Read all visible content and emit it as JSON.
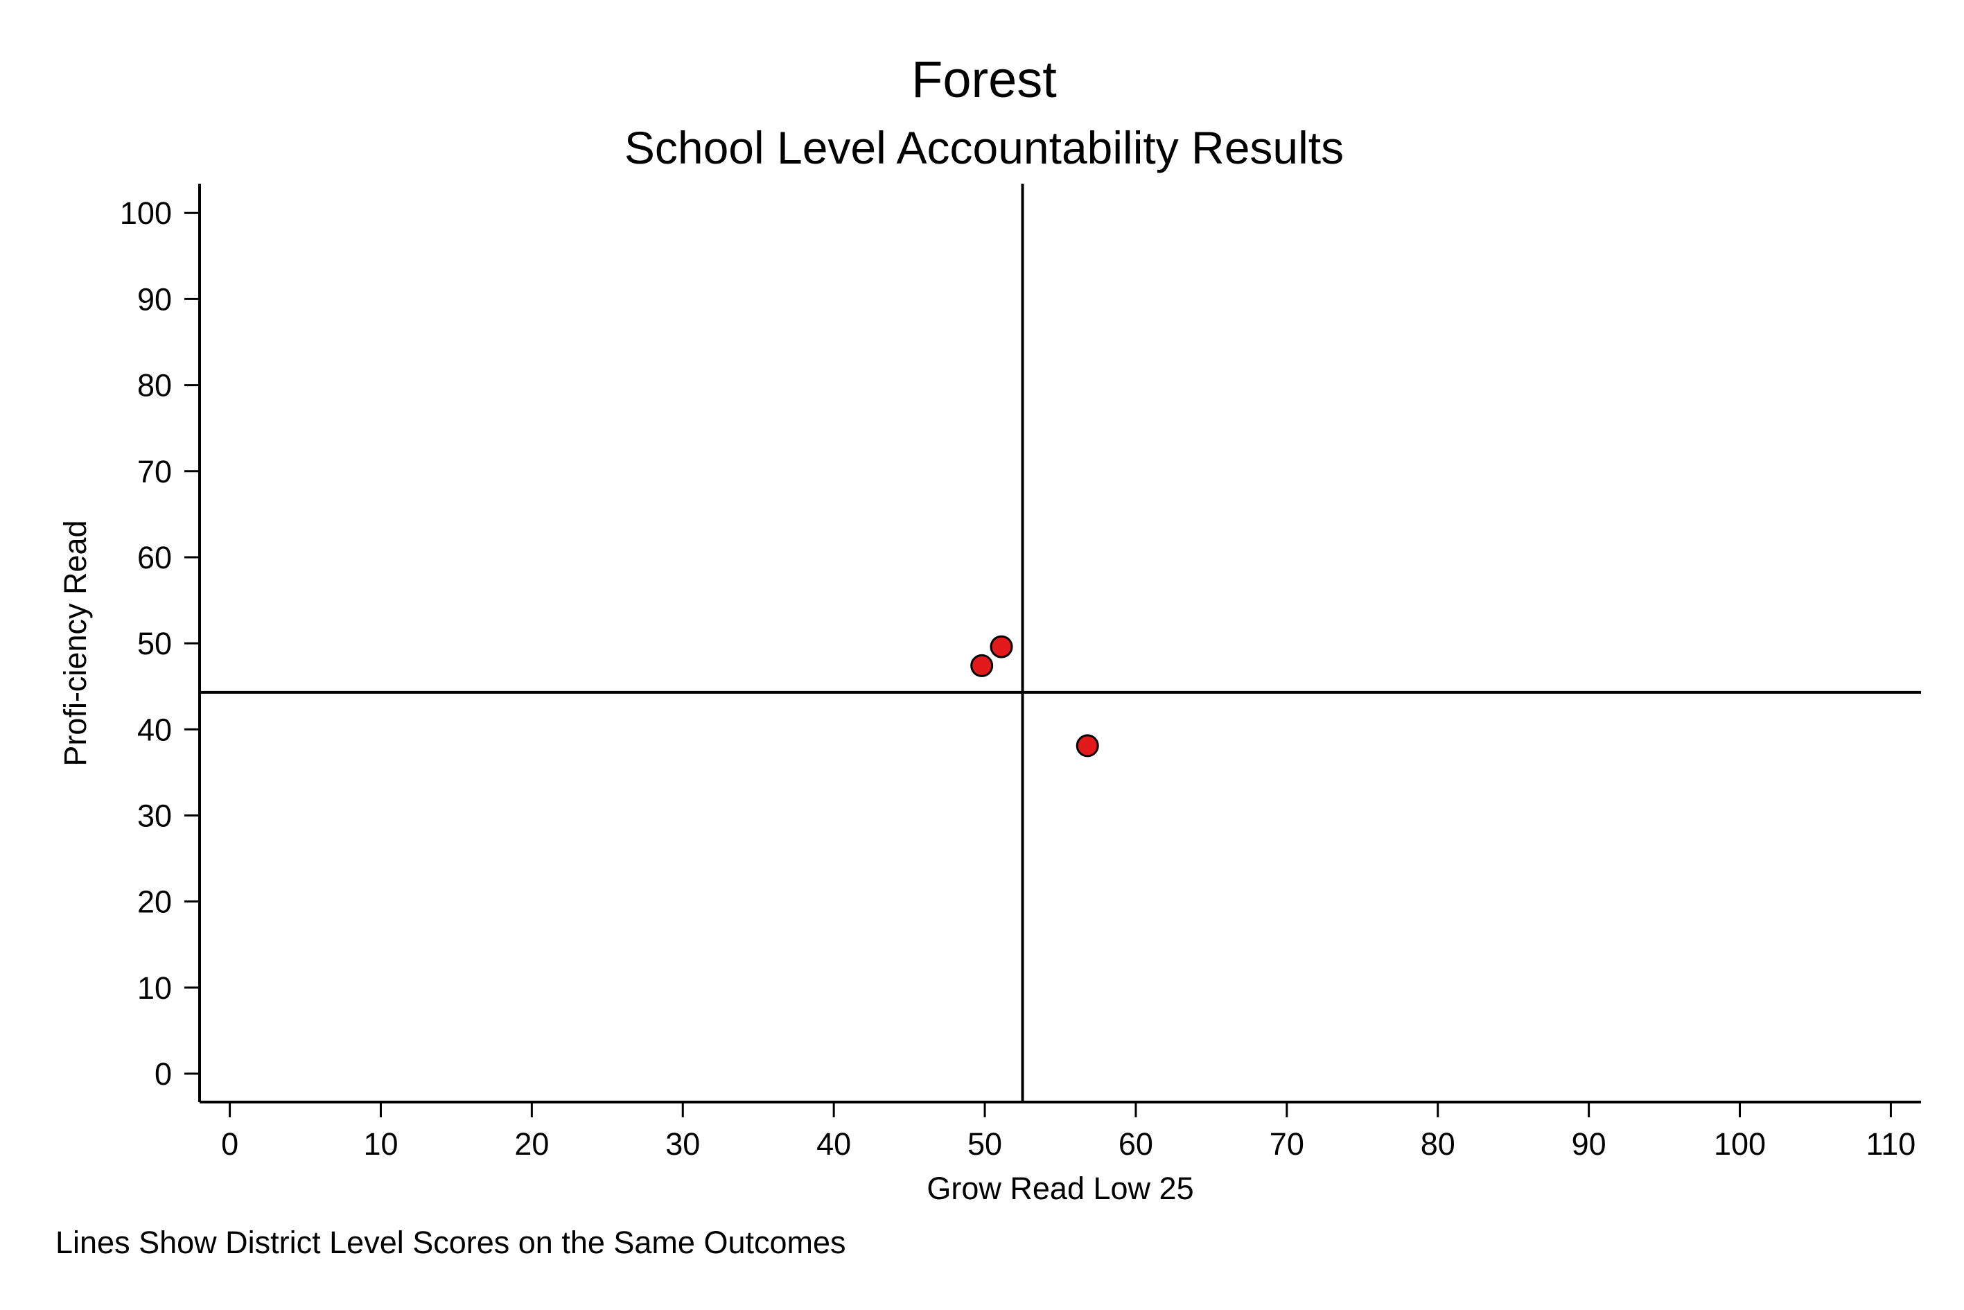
{
  "chart_data": {
    "type": "scatter",
    "title": "Forest",
    "subtitle": "School Level Accountability Results",
    "xlabel": "Grow Read Low 25",
    "ylabel": "Profi-ciency Read",
    "note": "Lines Show District Level Scores on the Same Outcomes",
    "xlim": [
      -2,
      112
    ],
    "ylim": [
      -3.3,
      103.4
    ],
    "xticks": [
      0,
      10,
      20,
      30,
      40,
      50,
      60,
      70,
      80,
      90,
      100,
      110
    ],
    "yticks": [
      0,
      10,
      20,
      30,
      40,
      50,
      60,
      70,
      80,
      90,
      100
    ],
    "grid": false,
    "reference_lines": {
      "x": 52.5,
      "y": 44.3
    },
    "points": [
      {
        "x": 49.8,
        "y": 47.4
      },
      {
        "x": 51.1,
        "y": 49.6
      },
      {
        "x": 56.8,
        "y": 38.1
      }
    ],
    "colors": {
      "marker_fill": "#e31a1c",
      "marker_stroke": "#000000",
      "axis": "#000000",
      "reference_line": "#000000"
    }
  }
}
